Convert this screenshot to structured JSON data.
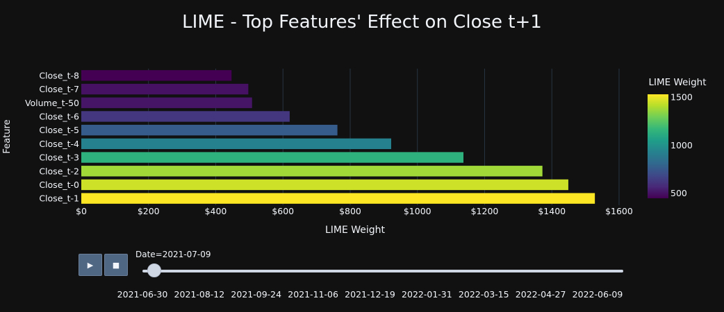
{
  "chart_data": {
    "type": "bar",
    "orientation": "horizontal",
    "title": "LIME - Top Features' Effect on Close t+1",
    "xlabel": "LIME Weight",
    "ylabel": "Feature",
    "xlim": [
      0,
      1660
    ],
    "x_ticks": [
      0,
      200,
      400,
      600,
      800,
      1000,
      1200,
      1400,
      1600
    ],
    "x_tick_labels": [
      "$0",
      "$200",
      "$400",
      "$600",
      "$800",
      "$1000",
      "$1200",
      "$1400",
      "$1600"
    ],
    "categories": [
      "Close_t-8",
      "Close_t-7",
      "Volume_t-50",
      "Close_t-6",
      "Close_t-5",
      "Close_t-4",
      "Close_t-3",
      "Close_t-2",
      "Close_t-0",
      "Close_t-1"
    ],
    "values": [
      447,
      497,
      508,
      620,
      762,
      922,
      1137,
      1372,
      1449,
      1528
    ],
    "grid": true,
    "colorbar": {
      "title": "LIME Weight",
      "colorscale": "Viridis",
      "range": [
        447,
        1528
      ],
      "ticks": [
        500,
        1000,
        1500
      ],
      "tick_labels": [
        "500",
        "1000",
        "1500"
      ]
    }
  },
  "colors": {
    "background": "#111111",
    "grid": "#283442",
    "text": "#f2f5fa",
    "button": "#506784"
  },
  "controls": {
    "play_icon": "play-icon",
    "stop_icon": "stop-icon",
    "play_glyph": "▶",
    "stop_glyph": "■",
    "slider_label": "Date=2021-07-09",
    "slider_steps": [
      "2021-06-30",
      "2021-08-12",
      "2021-09-24",
      "2021-11-06",
      "2021-12-19",
      "2022-01-31",
      "2022-03-15",
      "2022-04-27",
      "2022-06-09"
    ],
    "current_value": "2021-07-09"
  }
}
